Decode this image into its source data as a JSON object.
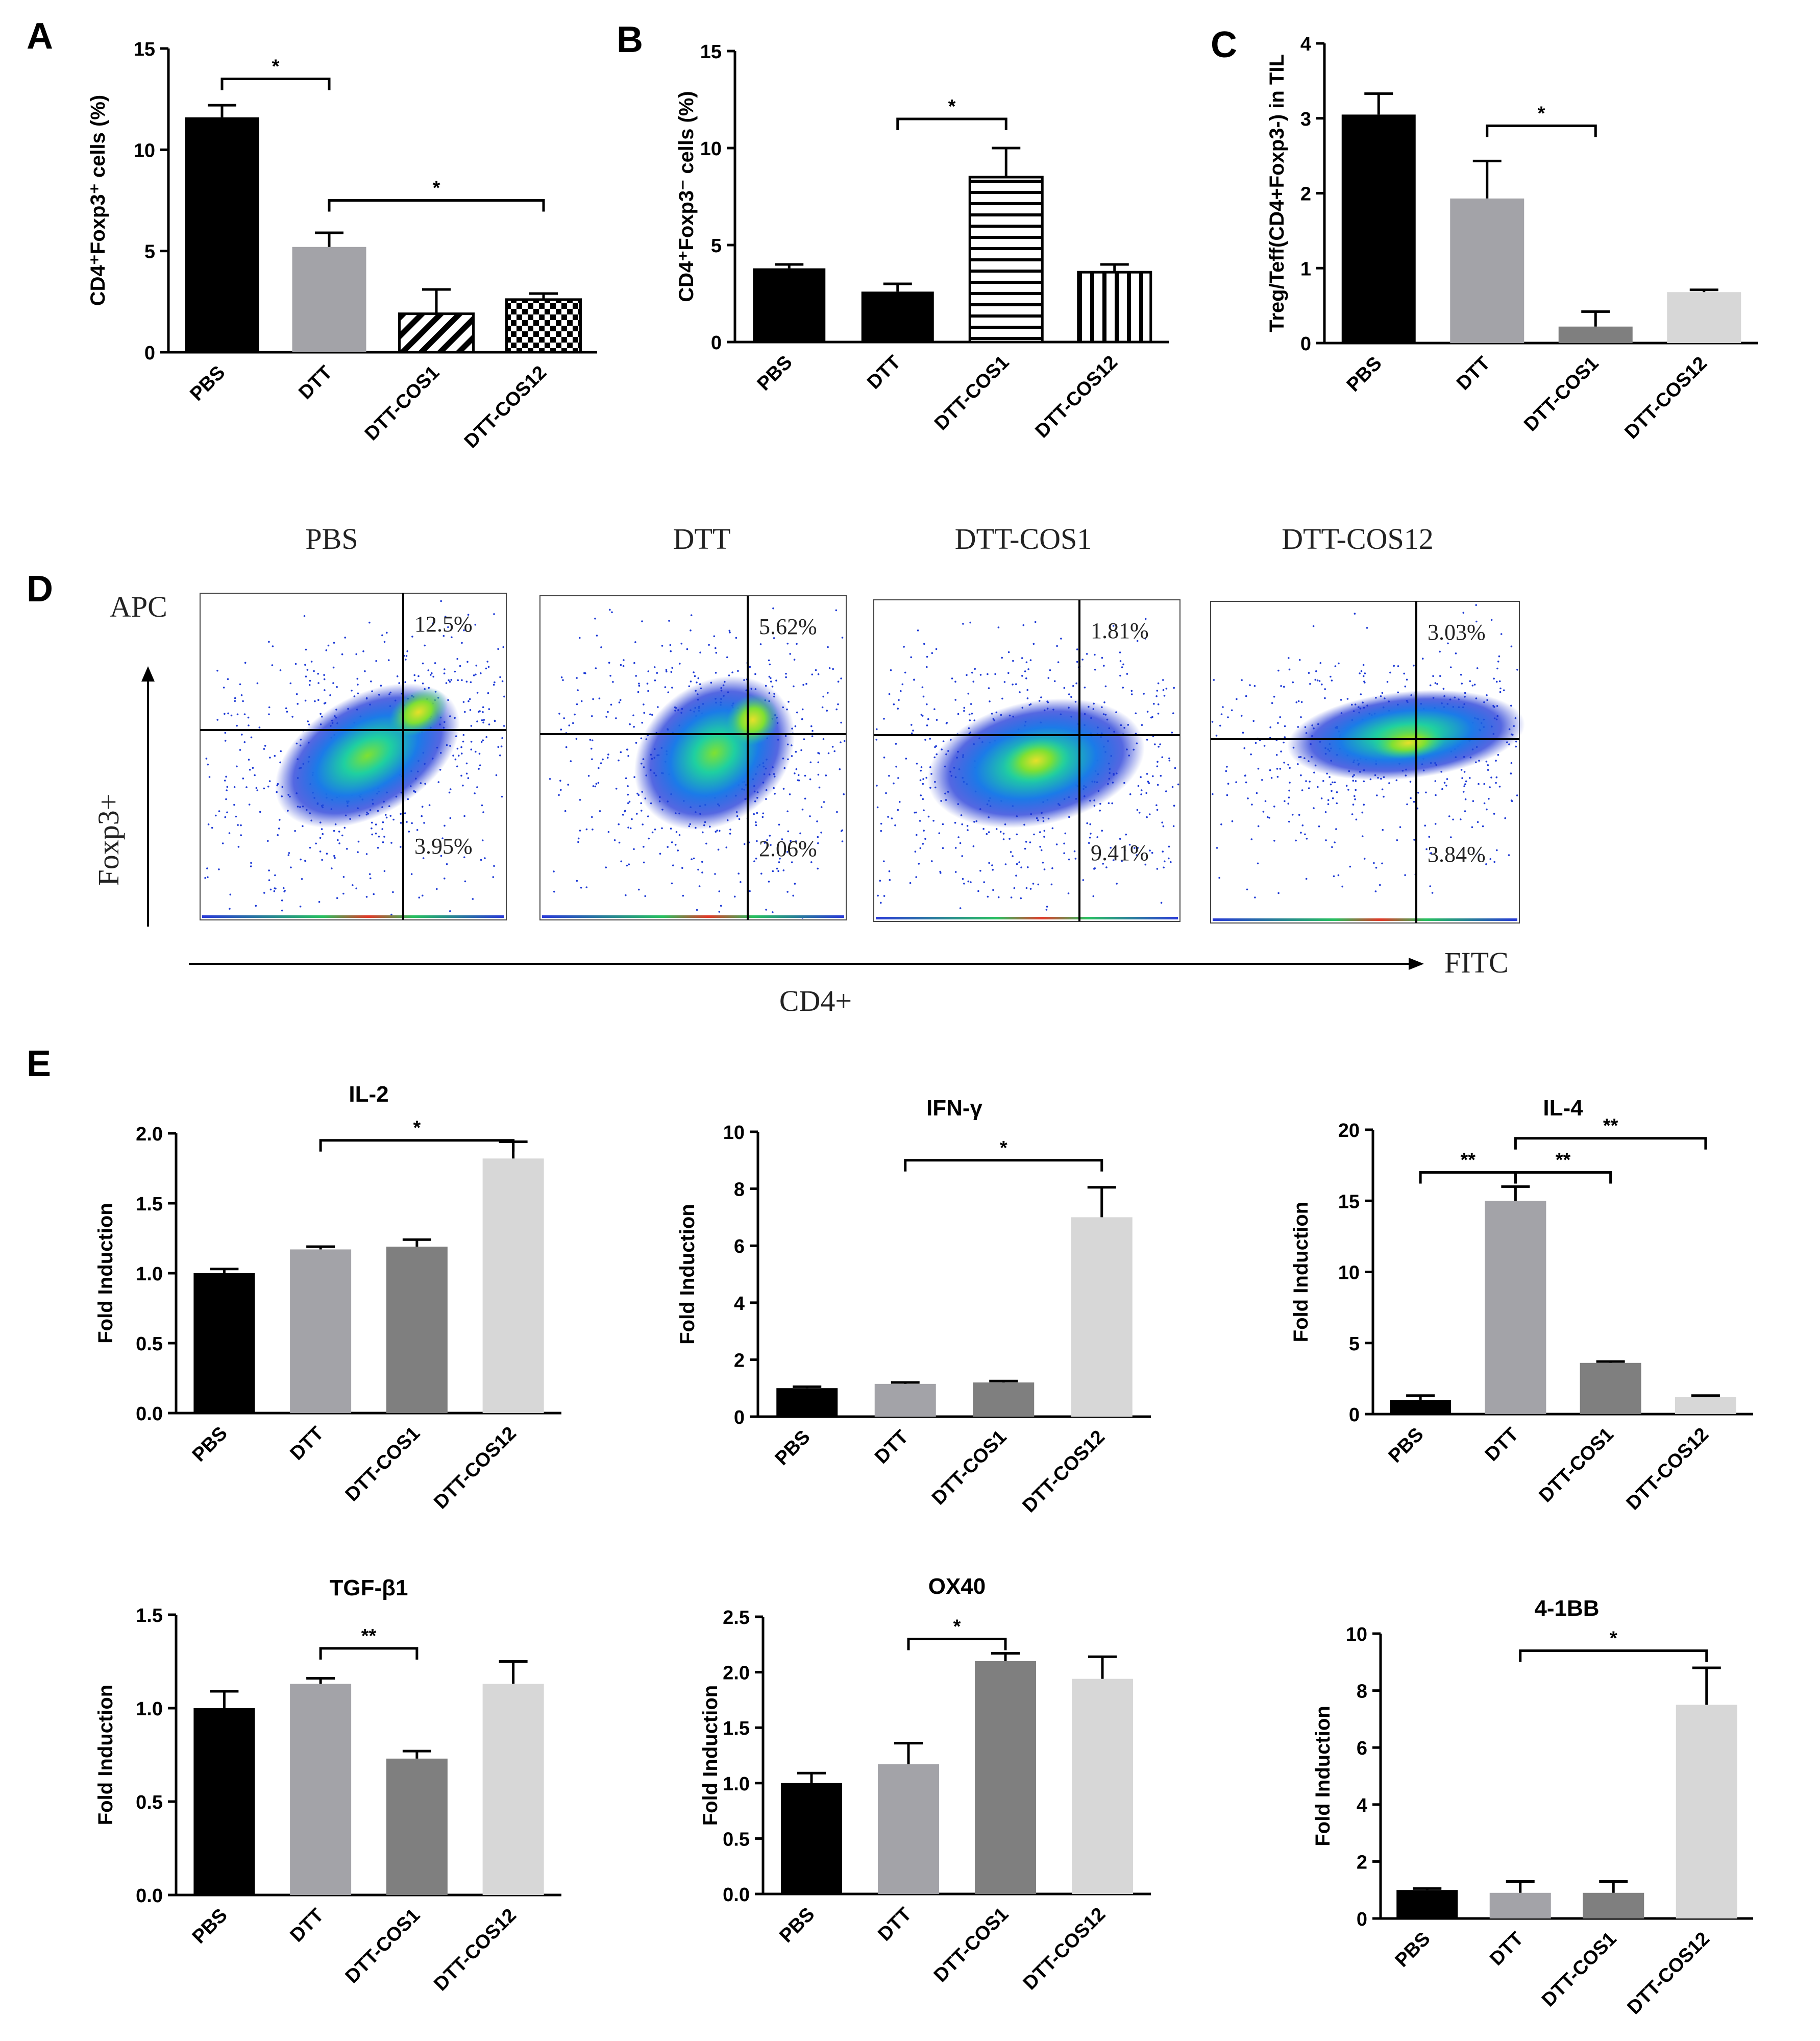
{
  "chart_data": [
    {
      "panel": "A",
      "type": "bar",
      "title": "",
      "ylabel": "CD4⁺Foxp3⁺ cells (%)",
      "categories": [
        "PBS",
        "DTT",
        "DTT-COS1",
        "DTT-COS12"
      ],
      "values": [
        11.6,
        5.2,
        1.9,
        2.6
      ],
      "errors": [
        0.6,
        0.7,
        1.2,
        0.3
      ],
      "fills": [
        "#000000",
        "#a3a3a8",
        "pattern-diagonal",
        "pattern-checker"
      ],
      "ylim": [
        0,
        15
      ],
      "yticks": [
        0,
        5,
        10,
        15
      ],
      "yticklabels": [
        "0",
        "5",
        "10",
        "15"
      ],
      "significance": [
        {
          "from": 0,
          "to": 1,
          "y": 13.5,
          "label": "*"
        },
        {
          "from": 1,
          "to": 3,
          "y": 7.5,
          "label": "*"
        }
      ]
    },
    {
      "panel": "B",
      "type": "bar",
      "title": "",
      "ylabel": "CD4⁺Foxp3⁻ cells (%)",
      "categories": [
        "PBS",
        "DTT",
        "DTT-COS1",
        "DTT-COS12"
      ],
      "values": [
        3.8,
        2.6,
        8.5,
        3.6
      ],
      "errors": [
        0.2,
        0.4,
        1.5,
        0.4
      ],
      "fills": [
        "#000000",
        "#000000",
        "pattern-horizontal",
        "pattern-vertical"
      ],
      "ylim": [
        0,
        15
      ],
      "yticks": [
        0,
        5,
        10,
        15
      ],
      "yticklabels": [
        "0",
        "5",
        "10",
        "15"
      ],
      "significance": [
        {
          "from": 1,
          "to": 2,
          "y": 11.5,
          "label": "*"
        }
      ]
    },
    {
      "panel": "C",
      "type": "bar",
      "title": "",
      "ylabel": "Treg/Teff(CD4+Foxp3-) in TIL",
      "categories": [
        "PBS",
        "DTT",
        "DTT-COS1",
        "DTT-COS12"
      ],
      "values": [
        3.05,
        1.93,
        0.22,
        0.68
      ],
      "errors": [
        0.28,
        0.5,
        0.2,
        0.03
      ],
      "fills": [
        "#000000",
        "#a3a3a8",
        "#7f7f7f",
        "#d7d7d7"
      ],
      "ylim": [
        0,
        4
      ],
      "yticks": [
        0,
        1,
        2,
        3,
        4
      ],
      "yticklabels": [
        "0",
        "1",
        "2",
        "3",
        "4"
      ],
      "significance": [
        {
          "from": 1,
          "to": 2,
          "y": 2.9,
          "label": "*"
        }
      ]
    },
    {
      "panel": "E",
      "type": "bar",
      "title": "IL-2",
      "ylabel": "Fold Induction",
      "categories": [
        "PBS",
        "DTT",
        "DTT-COS1",
        "DTT-COS12"
      ],
      "values": [
        1.0,
        1.17,
        1.19,
        1.82
      ],
      "errors": [
        0.03,
        0.02,
        0.05,
        0.12
      ],
      "fills": [
        "#000000",
        "#a3a3a8",
        "#7f7f7f",
        "#d7d7d7"
      ],
      "ylim": [
        0,
        2.0
      ],
      "yticks": [
        0,
        0.5,
        1.0,
        1.5,
        2.0
      ],
      "yticklabels": [
        "0.0",
        "0.5",
        "1.0",
        "1.5",
        "2.0"
      ],
      "significance": [
        {
          "from": 1,
          "to": 3,
          "y": 1.95,
          "label": "*"
        }
      ]
    },
    {
      "panel": "E",
      "type": "bar",
      "title": "IFN-γ",
      "ylabel": "Fold Induction",
      "categories": [
        "PBS",
        "DTT",
        "DTT-COS1",
        "DTT-COS12"
      ],
      "values": [
        1.0,
        1.15,
        1.2,
        7.0
      ],
      "errors": [
        0.05,
        0.05,
        0.05,
        1.05
      ],
      "fills": [
        "#000000",
        "#a3a3a8",
        "#7f7f7f",
        "#d7d7d7"
      ],
      "ylim": [
        0,
        10
      ],
      "yticks": [
        0,
        2,
        4,
        6,
        8,
        10
      ],
      "yticklabels": [
        "0",
        "2",
        "4",
        "6",
        "8",
        "10"
      ],
      "significance": [
        {
          "from": 1,
          "to": 3,
          "y": 9.0,
          "label": "*"
        }
      ]
    },
    {
      "panel": "E",
      "type": "bar",
      "title": "IL-4",
      "ylabel": "Fold Induction",
      "categories": [
        "PBS",
        "DTT",
        "DTT-COS1",
        "DTT-COS12"
      ],
      "values": [
        1.0,
        15.0,
        3.6,
        1.2
      ],
      "errors": [
        0.3,
        1.0,
        0.1,
        0.1
      ],
      "fills": [
        "#000000",
        "#a3a3a8",
        "#7f7f7f",
        "#d7d7d7"
      ],
      "ylim": [
        0,
        20
      ],
      "yticks": [
        0,
        5,
        10,
        15,
        20
      ],
      "yticklabels": [
        "0",
        "5",
        "10",
        "15",
        "20"
      ],
      "significance": [
        {
          "from": 0,
          "to": 1,
          "y": 17.0,
          "label": "**"
        },
        {
          "from": 1,
          "to": 2,
          "y": 17.0,
          "label": "**"
        },
        {
          "from": 1,
          "to": 3,
          "y": 19.4,
          "label": "**"
        }
      ]
    },
    {
      "panel": "E",
      "type": "bar",
      "title": "TGF-β1",
      "ylabel": "Fold Induction",
      "categories": [
        "PBS",
        "DTT",
        "DTT-COS1",
        "DTT-COS12"
      ],
      "values": [
        1.0,
        1.13,
        0.73,
        1.13
      ],
      "errors": [
        0.09,
        0.03,
        0.04,
        0.12
      ],
      "fills": [
        "#000000",
        "#a3a3a8",
        "#7f7f7f",
        "#d7d7d7"
      ],
      "ylim": [
        0,
        1.5
      ],
      "yticks": [
        0,
        0.5,
        1.0,
        1.5
      ],
      "yticklabels": [
        "0.0",
        "0.5",
        "1.0",
        "1.5"
      ],
      "significance": [
        {
          "from": 1,
          "to": 2,
          "y": 1.32,
          "label": "**"
        }
      ]
    },
    {
      "panel": "E",
      "type": "bar",
      "title": "OX40",
      "ylabel": "Fold Induction",
      "categories": [
        "PBS",
        "DTT",
        "DTT-COS1",
        "DTT-COS12"
      ],
      "values": [
        1.0,
        1.17,
        2.1,
        1.94
      ],
      "errors": [
        0.09,
        0.19,
        0.07,
        0.2
      ],
      "fills": [
        "#000000",
        "#a3a3a8",
        "#7f7f7f",
        "#d7d7d7"
      ],
      "ylim": [
        0,
        2.5
      ],
      "yticks": [
        0,
        0.5,
        1.0,
        1.5,
        2.0,
        2.5
      ],
      "yticklabels": [
        "0.0",
        "0.5",
        "1.0",
        "1.5",
        "2.0",
        "2.5"
      ],
      "significance": [
        {
          "from": 1,
          "to": 2,
          "y": 2.3,
          "label": "*"
        }
      ]
    },
    {
      "panel": "E",
      "type": "bar",
      "title": "4-1BB",
      "ylabel": "Fold Induction",
      "categories": [
        "PBS",
        "DTT",
        "DTT-COS1",
        "DTT-COS12"
      ],
      "values": [
        1.0,
        0.9,
        0.9,
        7.5
      ],
      "errors": [
        0.05,
        0.4,
        0.4,
        1.3
      ],
      "fills": [
        "#000000",
        "#a3a3a8",
        "#7f7f7f",
        "#d7d7d7"
      ],
      "ylim": [
        0,
        10
      ],
      "yticks": [
        0,
        2,
        4,
        6,
        8,
        10
      ],
      "yticklabels": [
        "0",
        "2",
        "4",
        "6",
        "8",
        "10"
      ],
      "significance": [
        {
          "from": 1,
          "to": 3,
          "y": 9.4,
          "label": "*"
        }
      ]
    }
  ],
  "panel_letters": [
    "A",
    "B",
    "C",
    "D",
    "E"
  ],
  "flow": {
    "groups": [
      "PBS",
      "DTT",
      "DTT-COS1",
      "DTT-COS12"
    ],
    "upper_right": [
      "12.5%",
      "5.62%",
      "1.81%",
      "3.03%"
    ],
    "lower_right": [
      "3.95%",
      "2.06%",
      "9.41%",
      "3.84%"
    ],
    "y_channel": "APC",
    "y_marker": "Foxp3+",
    "x_channel": "FITC",
    "x_marker": "CD4+"
  }
}
